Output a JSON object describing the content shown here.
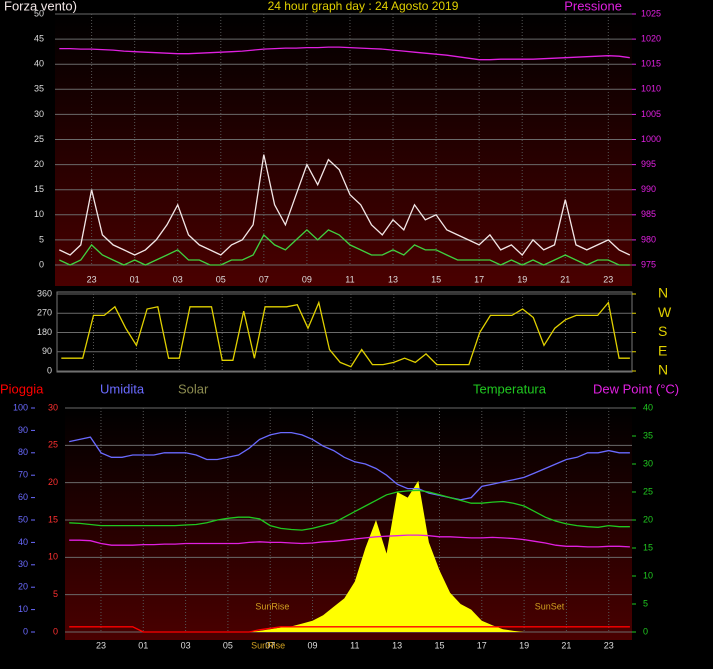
{
  "chart_data": [
    {
      "type": "line",
      "title": "24 hour graph day : 24 Agosto 2019",
      "x": [
        -2.5,
        -2,
        -1.5,
        -1,
        -0.5,
        0,
        0.5,
        1,
        1.5,
        2,
        2.5,
        3,
        3.5,
        4,
        4.5,
        5,
        5.5,
        6,
        6.5,
        7,
        7.5,
        8,
        8.5,
        9,
        9.5,
        10,
        10.5,
        11,
        11.5,
        12,
        12.5,
        13,
        13.5,
        14,
        14.5,
        15,
        15.5,
        16,
        16.5,
        17,
        17.5,
        18,
        18.5,
        19,
        19.5,
        20,
        20.5,
        21,
        21.5,
        22,
        22.5,
        23,
        23.5,
        24
      ],
      "xlim": [
        -2.7,
        24.1
      ],
      "xticks": [
        {
          "value": -1,
          "label": "23"
        },
        {
          "value": 1,
          "label": "01"
        },
        {
          "value": 3,
          "label": "03"
        },
        {
          "value": 5,
          "label": "05"
        },
        {
          "value": 7,
          "label": "07"
        },
        {
          "value": 9,
          "label": "09"
        },
        11,
        13,
        15,
        17,
        19,
        21,
        23
      ],
      "ylim": [
        0,
        50
      ],
      "yticks": [
        0,
        5,
        10,
        15,
        20,
        25,
        30,
        35,
        40,
        45,
        50
      ],
      "y2lim": [
        975,
        1025
      ],
      "y2ticks": [
        975,
        980,
        985,
        990,
        995,
        1000,
        1005,
        1010,
        1015,
        1020,
        1025
      ],
      "grid": true,
      "series": [
        {
          "name": "Forza vento)",
          "color": "#f2e6e6",
          "values": [
            3,
            2,
            4,
            15,
            6,
            4,
            3,
            2,
            3,
            5,
            8,
            12,
            6,
            4,
            3,
            2,
            4,
            5,
            8,
            22,
            12,
            8,
            14,
            20,
            16,
            21,
            19,
            14,
            12,
            8,
            6,
            9,
            7,
            12,
            9,
            10,
            7,
            6,
            5,
            4,
            6,
            3,
            4,
            2,
            5,
            3,
            4,
            13,
            4,
            3,
            4,
            5,
            3,
            2
          ]
        },
        {
          "color": "#40d040",
          "values": [
            1,
            0,
            1,
            4,
            2,
            1,
            0,
            1,
            0,
            1,
            2,
            3,
            1,
            1,
            0,
            0,
            1,
            1,
            2,
            6,
            4,
            3,
            5,
            7,
            5,
            7,
            6,
            4,
            3,
            2,
            2,
            3,
            2,
            4,
            3,
            3,
            2,
            1,
            1,
            1,
            1,
            0,
            1,
            0,
            1,
            0,
            1,
            2,
            1,
            0,
            1,
            1,
            0,
            0
          ]
        },
        {
          "name": "Pressione",
          "color": "#e020e0",
          "axis": "y2",
          "values": [
            1018.1,
            1018.1,
            1018.0,
            1018.0,
            1017.9,
            1017.8,
            1017.6,
            1017.5,
            1017.4,
            1017.3,
            1017.2,
            1017.1,
            1017.1,
            1017.2,
            1017.3,
            1017.4,
            1017.5,
            1017.6,
            1017.8,
            1018.0,
            1018.1,
            1018.2,
            1018.2,
            1018.3,
            1018.3,
            1018.4,
            1018.4,
            1018.3,
            1018.2,
            1018.1,
            1018.0,
            1017.8,
            1017.6,
            1017.4,
            1017.2,
            1017.0,
            1016.8,
            1016.5,
            1016.2,
            1015.9,
            1015.9,
            1016.0,
            1016.0,
            1016.0,
            1016.0,
            1016.1,
            1016.2,
            1016.3,
            1016.4,
            1016.5,
            1016.6,
            1016.7,
            1016.6,
            1016.3
          ]
        }
      ]
    },
    {
      "type": "line",
      "x": [
        -2.5,
        -2,
        -1.5,
        -1,
        -0.5,
        0,
        0.5,
        1,
        1.5,
        2,
        2.5,
        3,
        3.5,
        4,
        4.5,
        5,
        5.5,
        6,
        6.5,
        7,
        7.5,
        8,
        8.5,
        9,
        9.5,
        10,
        10.5,
        11,
        11.5,
        12,
        12.5,
        13,
        13.5,
        14,
        14.5,
        15,
        15.5,
        16,
        16.5,
        17,
        17.5,
        18,
        18.5,
        19,
        19.5,
        20,
        20.5,
        21,
        21.5,
        22,
        22.5,
        23,
        23.5,
        24
      ],
      "xlim": [
        -2.7,
        24.1
      ],
      "ylim": [
        0,
        360
      ],
      "yticks": [
        0,
        90,
        180,
        270,
        360
      ],
      "y2lim": [
        0,
        360
      ],
      "y2ticks": [
        {
          "value": 360,
          "label": "N"
        },
        {
          "value": 270,
          "label": "W"
        },
        {
          "value": 180,
          "label": "S"
        },
        {
          "value": 90,
          "label": "E"
        },
        {
          "value": 0,
          "label": "N"
        }
      ],
      "grid": true,
      "series": [
        {
          "color": "#e0d000",
          "values": [
            60,
            60,
            60,
            260,
            260,
            300,
            200,
            120,
            290,
            300,
            60,
            60,
            300,
            300,
            300,
            50,
            50,
            280,
            60,
            300,
            300,
            300,
            310,
            200,
            320,
            100,
            40,
            20,
            100,
            30,
            30,
            40,
            60,
            40,
            80,
            30,
            30,
            30,
            30,
            180,
            260,
            260,
            260,
            290,
            250,
            120,
            200,
            240,
            260,
            260,
            260,
            320,
            60,
            60
          ]
        }
      ]
    },
    {
      "type": "line",
      "x": [
        -2.5,
        -2,
        -1.5,
        -1,
        -0.5,
        0,
        0.5,
        1,
        1.5,
        2,
        2.5,
        3,
        3.5,
        4,
        4.5,
        5,
        5.5,
        6,
        6.5,
        7,
        7.5,
        8,
        8.5,
        9,
        9.5,
        10,
        10.5,
        11,
        11.5,
        12,
        12.5,
        13,
        13.5,
        14,
        14.5,
        15,
        15.5,
        16,
        16.5,
        17,
        17.5,
        18,
        18.5,
        19,
        19.5,
        20,
        20.5,
        21,
        21.5,
        22,
        22.5,
        23,
        23.5,
        24
      ],
      "xlim": [
        -2.7,
        24.1
      ],
      "xticks": [
        {
          "value": -1,
          "label": "23"
        },
        {
          "value": 1,
          "label": "01"
        },
        {
          "value": 3,
          "label": "03"
        },
        {
          "value": 5,
          "label": "05"
        },
        {
          "value": 7,
          "label": "07"
        },
        {
          "value": 9,
          "label": "09"
        },
        11,
        13,
        15,
        17,
        19,
        21,
        23
      ],
      "ylim": [
        0,
        30
      ],
      "yticks": [
        0,
        5,
        10,
        15,
        20,
        25,
        30
      ],
      "y2lim": [
        0,
        40
      ],
      "y2ticks": [
        0,
        5,
        10,
        15,
        20,
        25,
        30,
        35,
        40
      ],
      "y3lim": [
        0,
        100
      ],
      "y3ticks": [
        0,
        10,
        20,
        30,
        40,
        50,
        60,
        70,
        80,
        90,
        100
      ],
      "grid": true,
      "annotations": [
        {
          "text": "SunRise",
          "x": 7.1
        },
        {
          "text": "SunSet",
          "x": 20.2
        }
      ],
      "axis_annotations": [
        {
          "text": "SunRise",
          "x": 6.9
        }
      ],
      "series": [
        {
          "name": "Pioggia",
          "color": "#ff0000",
          "values": [
            0.7,
            0.7,
            0.7,
            0.7,
            0.7,
            0.7,
            0.7,
            0,
            0,
            0,
            0,
            0,
            0,
            0,
            0,
            0,
            0,
            0,
            0.3,
            0.5,
            0.7,
            0.7,
            0.7,
            0.7,
            0.7,
            0.7,
            0.7,
            0.7,
            0.7,
            0.7,
            0.7,
            0.7,
            0.7,
            0.7,
            0.7,
            0.7,
            0.7,
            0.7,
            0.7,
            0.7,
            0.7,
            0.7,
            0.7,
            0.7,
            0.7,
            0.7,
            0.7,
            0.7,
            0.7,
            0.7,
            0.7,
            0.7,
            0.7,
            0.7
          ]
        },
        {
          "name": "Umidita",
          "color": "#6a6aff",
          "axis": "y3",
          "values": [
            85,
            86,
            87,
            80,
            78,
            78,
            79,
            79,
            79,
            80,
            80,
            80,
            79,
            77,
            77,
            78,
            79,
            82,
            86,
            88,
            89,
            89,
            88,
            86,
            83,
            81,
            78,
            76,
            75,
            73,
            70,
            66,
            64,
            64,
            62,
            61,
            60,
            59,
            60,
            65,
            66,
            67,
            68,
            69,
            71,
            73,
            75,
            77,
            78,
            80,
            80,
            81,
            80,
            80
          ]
        },
        {
          "name": "Solar",
          "color": "#ffff00",
          "label_color": "#8c8c50",
          "axis": "y2",
          "fill": true,
          "values": [
            0,
            0,
            0,
            0,
            0,
            0,
            0,
            0,
            0,
            0,
            0,
            0,
            0,
            0,
            0,
            0,
            0,
            0,
            0.2,
            0.5,
            0.8,
            1,
            1.5,
            2,
            3,
            4.5,
            6,
            9,
            15,
            20,
            14,
            25,
            24,
            27,
            16,
            11,
            7,
            5,
            4,
            2,
            1.2,
            0.5,
            0.2,
            0,
            0,
            0,
            0,
            0,
            0,
            0,
            0,
            0,
            0,
            0
          ]
        },
        {
          "name": "Temperatura",
          "color": "#20c820",
          "axis": "y2",
          "values": [
            19.5,
            19.4,
            19.2,
            19.0,
            19.0,
            19.0,
            19.0,
            19.0,
            19.0,
            19.0,
            19.0,
            19.1,
            19.2,
            19.5,
            20.0,
            20.3,
            20.5,
            20.5,
            20.2,
            19.0,
            18.5,
            18.3,
            18.2,
            18.5,
            19.0,
            19.5,
            20.5,
            21.5,
            22.5,
            23.5,
            24.5,
            25.0,
            25.2,
            25.3,
            25.0,
            24.5,
            24.0,
            23.5,
            23.0,
            23.0,
            23.2,
            23.3,
            23.0,
            22.5,
            21.5,
            20.5,
            19.8,
            19.3,
            19.0,
            18.8,
            18.7,
            19.0,
            18.8,
            18.8
          ]
        },
        {
          "name": "Dew Point (°C)",
          "color": "#e020e0",
          "axis": "y2",
          "values": [
            16.4,
            16.4,
            16.3,
            15.8,
            15.5,
            15.5,
            15.5,
            15.6,
            15.6,
            15.7,
            15.7,
            15.8,
            15.8,
            15.8,
            15.8,
            15.8,
            15.8,
            16.0,
            16.1,
            16.0,
            16.0,
            15.9,
            15.8,
            15.9,
            16.1,
            16.2,
            16.4,
            16.6,
            16.8,
            17.0,
            17.1,
            17.2,
            17.3,
            17.3,
            17.2,
            17.0,
            17.0,
            16.9,
            16.8,
            16.8,
            16.9,
            16.8,
            16.7,
            16.5,
            16.2,
            15.9,
            15.5,
            15.3,
            15.3,
            15.2,
            15.2,
            15.3,
            15.3,
            15.2
          ]
        }
      ]
    }
  ]
}
